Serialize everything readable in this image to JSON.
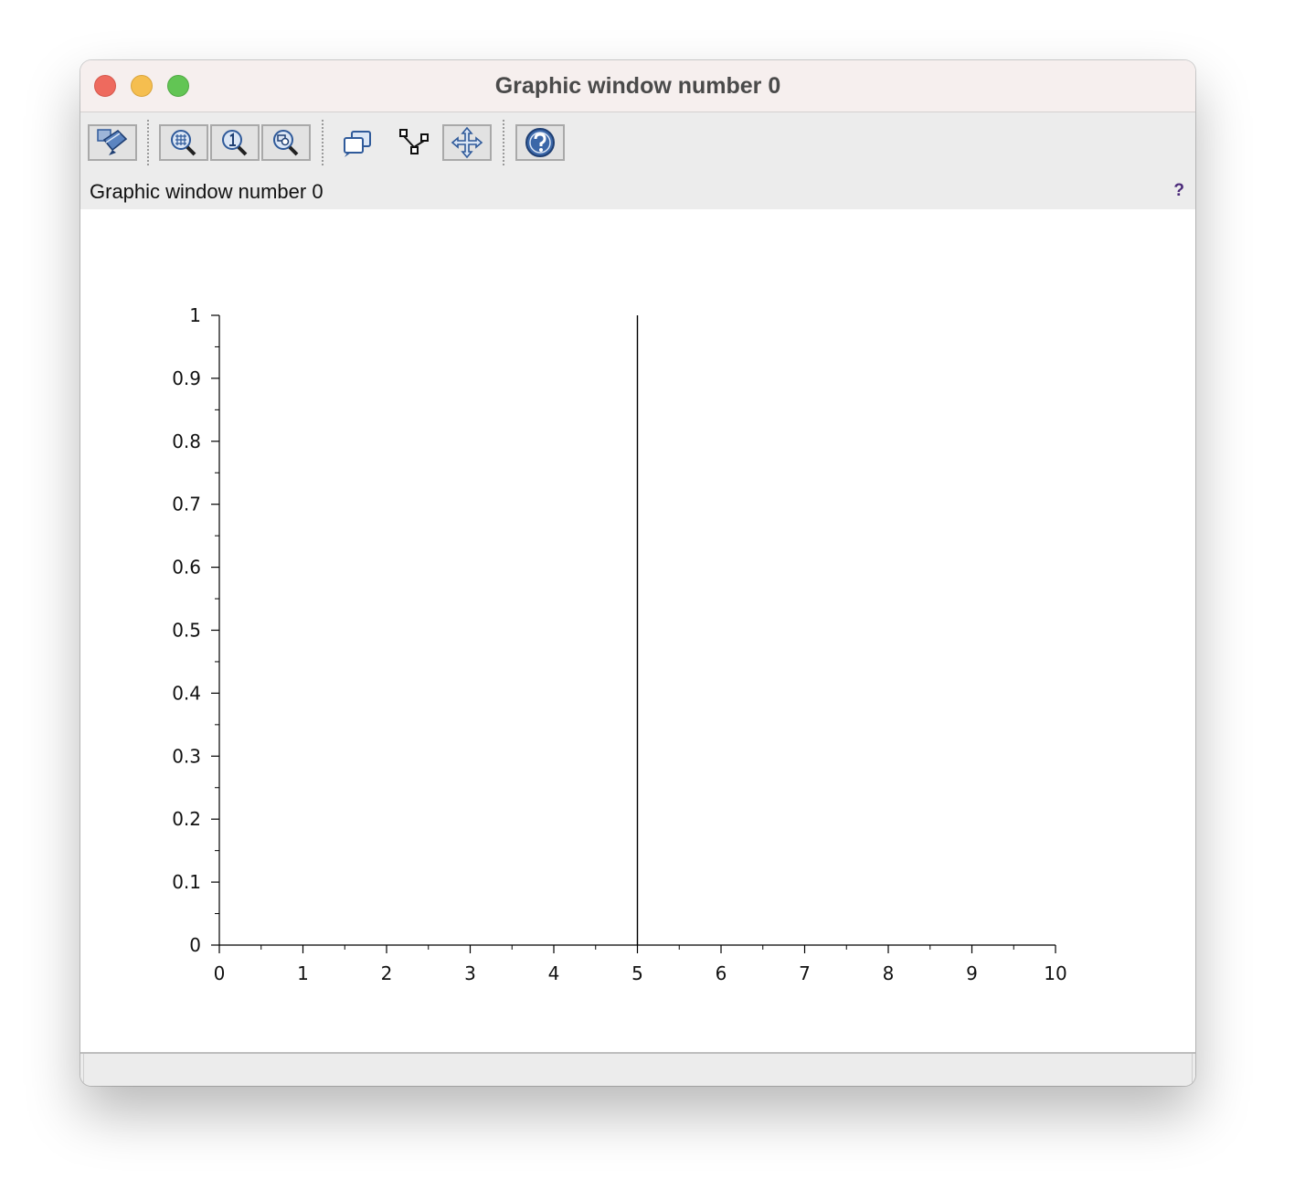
{
  "window": {
    "title": "Graphic window number 0",
    "info_text": "Graphic window number 0",
    "info_help": "?"
  },
  "toolbar": {
    "buttons": [
      {
        "name": "edit-figure-button",
        "icon": "figure-editor-icon",
        "pressed": true
      },
      {
        "name": "zoom-area-button",
        "icon": "zoom-area-icon",
        "pressed": true
      },
      {
        "name": "zoom-original-button",
        "icon": "zoom-original-icon",
        "pressed": true
      },
      {
        "name": "zoom-button",
        "icon": "zoom-icon",
        "pressed": true
      },
      {
        "name": "rotate-button",
        "icon": "rotate-icon",
        "pressed": false
      },
      {
        "name": "datatip-button",
        "icon": "datatip-icon",
        "pressed": false
      },
      {
        "name": "pan-button",
        "icon": "pan-icon",
        "pressed": true
      },
      {
        "name": "help-button",
        "icon": "help-icon",
        "pressed": true
      }
    ]
  },
  "colors": {
    "accent": "#2f5a9a",
    "plot_line": "#000000",
    "axes": "#000000"
  },
  "chart_data": {
    "type": "line",
    "title": "",
    "xlabel": "",
    "ylabel": "",
    "xlim": [
      0,
      10
    ],
    "ylim": [
      0,
      1
    ],
    "x_ticks": [
      "0",
      "1",
      "2",
      "3",
      "4",
      "5",
      "6",
      "7",
      "8",
      "9",
      "10"
    ],
    "y_ticks": [
      "0",
      "0.1",
      "0.2",
      "0.3",
      "0.4",
      "0.5",
      "0.6",
      "0.7",
      "0.8",
      "0.9",
      "1"
    ],
    "grid": false,
    "series": [
      {
        "x": [
          5,
          5
        ],
        "y": [
          0,
          1
        ]
      }
    ]
  }
}
